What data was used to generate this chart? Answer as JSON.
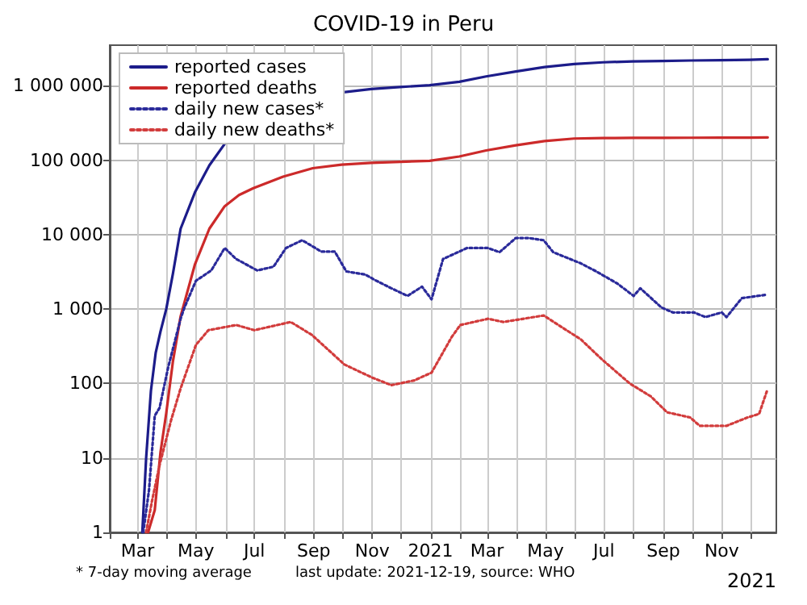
{
  "chart_data": {
    "type": "line",
    "title": "COVID-19 in Peru",
    "xlabel": "2021",
    "annotations": [
      "* 7-day moving average",
      "last update: 2021-12-19, source: WHO"
    ],
    "xlim": [
      "2020-02-01",
      "2021-12-28"
    ],
    "xticks": [
      {
        "value": "2020-02-01",
        "label": null
      },
      {
        "value": "2020-03-01",
        "label": "Mar"
      },
      {
        "value": "2020-04-01",
        "label": null
      },
      {
        "value": "2020-05-01",
        "label": "May"
      },
      {
        "value": "2020-06-01",
        "label": null
      },
      {
        "value": "2020-07-01",
        "label": "Jul"
      },
      {
        "value": "2020-08-01",
        "label": null
      },
      {
        "value": "2020-09-01",
        "label": "Sep"
      },
      {
        "value": "2020-10-01",
        "label": null
      },
      {
        "value": "2020-11-01",
        "label": "Nov"
      },
      {
        "value": "2020-12-01",
        "label": null
      },
      {
        "value": "2021-01-01",
        "label": "2021"
      },
      {
        "value": "2021-02-01",
        "label": null
      },
      {
        "value": "2021-03-01",
        "label": "Mar"
      },
      {
        "value": "2021-04-01",
        "label": null
      },
      {
        "value": "2021-05-01",
        "label": "May"
      },
      {
        "value": "2021-06-01",
        "label": null
      },
      {
        "value": "2021-07-01",
        "label": "Jul"
      },
      {
        "value": "2021-08-01",
        "label": null
      },
      {
        "value": "2021-09-01",
        "label": "Sep"
      },
      {
        "value": "2021-10-01",
        "label": null
      },
      {
        "value": "2021-11-01",
        "label": "Nov"
      },
      {
        "value": "2021-12-01",
        "label": null
      }
    ],
    "ylim": [
      1,
      3500000
    ],
    "yticks": [
      1,
      10,
      100,
      {
        "value": 1000,
        "label": "1 000"
      },
      {
        "value": 10000,
        "label": "10 000"
      },
      {
        "value": 100000,
        "label": "100 000"
      },
      {
        "value": 1000000,
        "label": "1 000 000"
      }
    ],
    "log": "y",
    "grid": true,
    "legend": "top left",
    "marker": "none",
    "series": [
      {
        "name": "reported cases",
        "color": "#1c1c8a",
        "line_style": "solid",
        "x": [
          "2020-03-06",
          "2020-03-10",
          "2020-03-15",
          "2020-03-20",
          "2020-03-25",
          "2020-03-31",
          "2020-04-07",
          "2020-04-15",
          "2020-04-30",
          "2020-05-15",
          "2020-05-31",
          "2020-06-30",
          "2020-07-31",
          "2020-08-31",
          "2020-09-30",
          "2020-10-31",
          "2020-11-30",
          "2020-12-31",
          "2021-01-31",
          "2021-02-28",
          "2021-03-31",
          "2021-04-30",
          "2021-05-31",
          "2021-06-30",
          "2021-07-31",
          "2021-08-31",
          "2021-09-30",
          "2021-10-31",
          "2021-11-30",
          "2021-12-19"
        ],
        "values": [
          1,
          10,
          80,
          260,
          500,
          1000,
          3000,
          12000,
          37000,
          85000,
          165000,
          null,
          null,
          null,
          810000,
          900000,
          960000,
          1015000,
          1130000,
          1330000,
          1550000,
          1780000,
          1950000,
          2060000,
          2120000,
          2150000,
          2180000,
          2200000,
          2230000,
          2270000
        ]
      },
      {
        "name": "reported deaths",
        "color": "#cc2a2a",
        "line_style": "solid",
        "x": [
          "2020-03-12",
          "2020-03-19",
          "2020-03-25",
          "2020-03-31",
          "2020-04-07",
          "2020-04-15",
          "2020-04-30",
          "2020-05-15",
          "2020-05-31",
          "2020-06-15",
          "2020-06-30",
          "2020-07-31",
          "2020-08-31",
          "2020-09-30",
          "2020-10-31",
          "2020-11-30",
          "2020-12-31",
          "2021-01-31",
          "2021-02-28",
          "2021-03-31",
          "2021-04-30",
          "2021-05-31",
          "2021-06-30",
          "2021-07-31",
          "2021-08-31",
          "2021-09-30",
          "2021-10-31",
          "2021-11-30",
          "2021-12-19"
        ],
        "values": [
          1,
          2,
          12,
          40,
          200,
          800,
          4000,
          12000,
          24000,
          34000,
          42000,
          60000,
          78000,
          87000,
          92000,
          95000,
          98000,
          112000,
          135000,
          158000,
          180000,
          195000,
          198000,
          199000,
          199500,
          200000,
          200500,
          201000,
          202000
        ]
      },
      {
        "name": "daily new cases*",
        "color": "#2a2a9a",
        "line_style": "dotted",
        "x": [
          "2020-03-07",
          "2020-03-13",
          "2020-03-19",
          "2020-03-24",
          "2020-04-02",
          "2020-04-15",
          "2020-04-19",
          "2020-05-01",
          "2020-05-17",
          "2020-05-31",
          "2020-06-12",
          "2020-07-04",
          "2020-07-21",
          "2020-08-03",
          "2020-08-20",
          "2020-09-09",
          "2020-09-23",
          "2020-10-05",
          "2020-10-25",
          "2020-11-04",
          "2020-11-21",
          "2020-12-08",
          "2020-12-23",
          "2021-01-02",
          "2021-01-14",
          "2021-02-08",
          "2021-03-02",
          "2021-03-14",
          "2021-03-31",
          "2021-04-13",
          "2021-04-29",
          "2021-05-09",
          "2021-06-07",
          "2021-06-23",
          "2021-07-15",
          "2021-08-01",
          "2021-08-08",
          "2021-08-30",
          "2021-09-11",
          "2021-10-03",
          "2021-10-15",
          "2021-11-01",
          "2021-11-06",
          "2021-11-22",
          "2021-12-18"
        ],
        "values": [
          1,
          3.7,
          37,
          47,
          165,
          740,
          1050,
          2400,
          3300,
          6600,
          4700,
          3300,
          3700,
          6600,
          8400,
          5900,
          5900,
          3200,
          2900,
          2450,
          1900,
          1500,
          2000,
          1350,
          4700,
          6600,
          6600,
          5800,
          9000,
          9000,
          8400,
          5800,
          4100,
          3200,
          2200,
          1500,
          1900,
          1050,
          900,
          900,
          780,
          900,
          780,
          1400,
          1560
        ]
      },
      {
        "name": "daily new deaths*",
        "color": "#d23c3c",
        "line_style": "dotted",
        "x": [
          "2020-03-10",
          "2020-03-16",
          "2020-03-24",
          "2020-04-05",
          "2020-04-15",
          "2020-05-01",
          "2020-05-14",
          "2020-06-12",
          "2020-07-01",
          "2020-08-08",
          "2020-08-30",
          "2020-10-03",
          "2020-11-01",
          "2020-11-21",
          "2020-12-15",
          "2021-01-02",
          "2021-01-23",
          "2021-02-01",
          "2021-03-02",
          "2021-03-18",
          "2021-04-29",
          "2021-06-07",
          "2021-06-29",
          "2021-07-28",
          "2021-08-19",
          "2021-09-05",
          "2021-09-29",
          "2021-10-09",
          "2021-11-06",
          "2021-11-28",
          "2021-12-10",
          "2021-12-18"
        ],
        "values": [
          1,
          2.6,
          8,
          32,
          86,
          330,
          520,
          610,
          520,
          670,
          450,
          180,
          120,
          95,
          110,
          140,
          420,
          610,
          740,
          670,
          820,
          390,
          210,
          100,
          67,
          41,
          35,
          27,
          27,
          35,
          39,
          78
        ]
      }
    ]
  }
}
